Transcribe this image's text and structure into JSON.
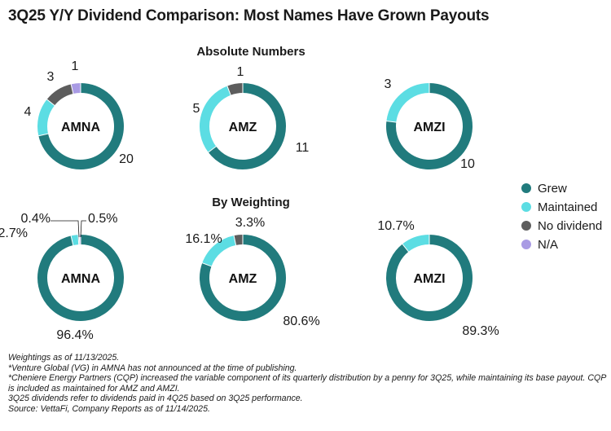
{
  "title": "3Q25 Y/Y Dividend Comparison: Most Names Have Grown Payouts",
  "colors": {
    "Grew": "#217b7d",
    "Maintained": "#5cdde3",
    "No dividend": "#5d5d5d",
    "N/A": "#a99be4"
  },
  "legend": [
    "Grew",
    "Maintained",
    "No dividend",
    "N/A"
  ],
  "chart_data": [
    {
      "type": "pie",
      "section": "Absolute Numbers",
      "center": "AMNA",
      "categories": [
        "Grew",
        "Maintained",
        "No dividend",
        "N/A"
      ],
      "values": [
        20,
        4,
        3,
        1
      ],
      "labels": [
        "20",
        "4",
        "3",
        "1"
      ]
    },
    {
      "type": "pie",
      "section": "Absolute Numbers",
      "center": "AMZ",
      "categories": [
        "Grew",
        "Maintained",
        "No dividend"
      ],
      "values": [
        11,
        5,
        1
      ],
      "labels": [
        "11",
        "5",
        "1"
      ]
    },
    {
      "type": "pie",
      "section": "Absolute Numbers",
      "center": "AMZI",
      "categories": [
        "Grew",
        "Maintained"
      ],
      "values": [
        10,
        3
      ],
      "labels": [
        "10",
        "3"
      ]
    },
    {
      "type": "pie",
      "section": "By Weighting",
      "center": "AMNA",
      "categories": [
        "Grew",
        "Maintained",
        "No dividend",
        "N/A"
      ],
      "values": [
        96.4,
        2.7,
        0.4,
        0.5
      ],
      "labels": [
        "96.4%",
        "2.7%",
        "0.4%",
        "0.5%"
      ]
    },
    {
      "type": "pie",
      "section": "By Weighting",
      "center": "AMZ",
      "categories": [
        "Grew",
        "Maintained",
        "No dividend"
      ],
      "values": [
        80.6,
        16.1,
        3.3
      ],
      "labels": [
        "80.6%",
        "16.1%",
        "3.3%"
      ]
    },
    {
      "type": "pie",
      "section": "By Weighting",
      "center": "AMZI",
      "categories": [
        "Grew",
        "Maintained"
      ],
      "values": [
        89.3,
        10.7
      ],
      "labels": [
        "89.3%",
        "10.7%"
      ]
    }
  ],
  "notes": [
    "Weightings as of 11/13/2025.",
    "*Venture Global (VG) in AMNA has not announced at the time of publishing.",
    "*Cheniere Energy Partners (CQP) increased the variable component of its quarterly distribution by a penny for 3Q25, while maintaining its base payout. CQP is included as maintained for AMZ and AMZI.",
    "3Q25 dividends refer to dividends paid in 4Q25 based on 3Q25 performance.",
    "Source: VettaFi, Company Reports as of 11/14/2025."
  ]
}
